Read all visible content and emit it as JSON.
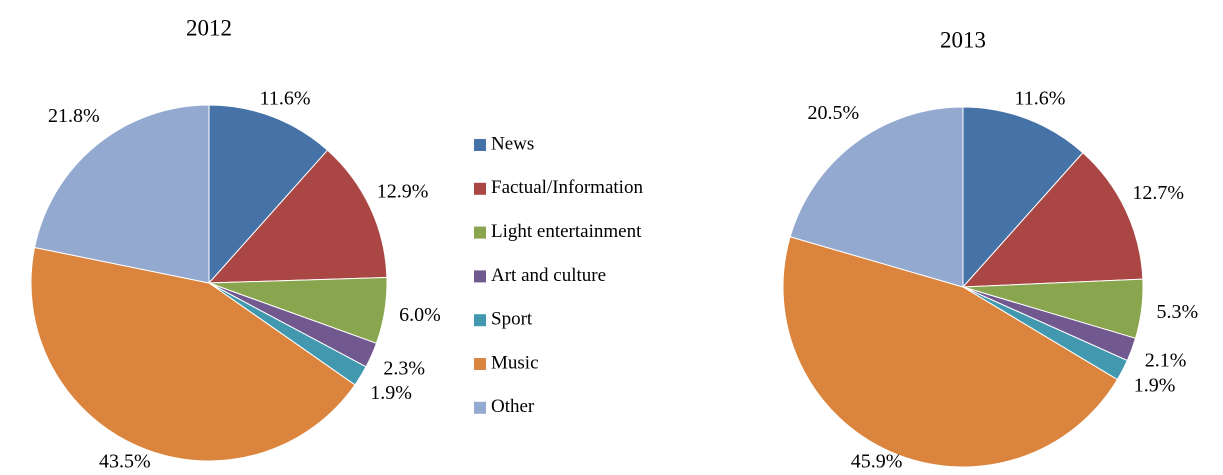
{
  "chart_data": [
    {
      "type": "pie",
      "title": "2012",
      "categories": [
        "News",
        "Factual/Information",
        "Light entertainment",
        "Art and culture",
        "Sport",
        "Music",
        "Other"
      ],
      "colors": [
        "#4572a7",
        "#aa4643",
        "#89a54e",
        "#71588f",
        "#4198af",
        "#db843d",
        "#93a9cf"
      ],
      "values": [
        11.6,
        12.9,
        6.0,
        2.3,
        1.9,
        43.5,
        21.8
      ],
      "value_labels": [
        "11.6%",
        "12.9%",
        "6.0%",
        "2.3%",
        "1.9%",
        "43.5%",
        "21.8%"
      ],
      "legend": "between"
    },
    {
      "type": "pie",
      "title": "2013",
      "values": [
        11.6,
        12.7,
        5.3,
        2.1,
        1.9,
        45.9,
        20.5
      ],
      "value_labels": [
        "11.6%",
        "12.7%",
        "5.3%",
        "2.1%",
        "1.9%",
        "45.9%",
        "20.5%"
      ]
    }
  ]
}
